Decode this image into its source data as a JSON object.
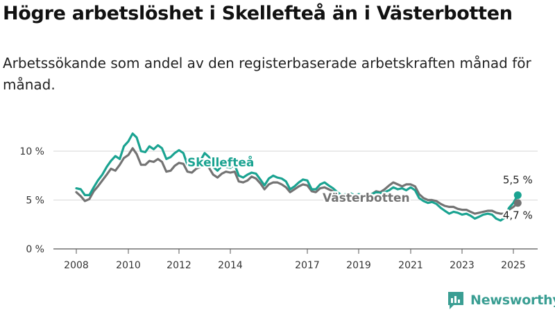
{
  "title": "Högre arbetslöshet i Skellefteå än i Västerbotten",
  "subtitle": "Arbetssökande som andel av den registerbaserade arbetskraften månad för månad.",
  "brand": {
    "name": "Newsworthy",
    "icon": "newsworthy-logo-icon",
    "color": "#3a9e93"
  },
  "chart_data": {
    "type": "line",
    "title": "Högre arbetslöshet i Skellefteå än i Västerbotten",
    "subtitle": "Arbetssökande som andel av den registerbaserade arbetskraften månad för månad.",
    "xlabel": "",
    "ylabel": "",
    "xlim": [
      2007.6,
      2025.6
    ],
    "ylim": [
      0,
      13
    ],
    "grid": true,
    "y_ticks": [
      {
        "value": 0,
        "label": "0 %"
      },
      {
        "value": 5,
        "label": "5 %"
      },
      {
        "value": 10,
        "label": "10 %"
      }
    ],
    "x_ticks": [
      {
        "value": 2008,
        "label": "2008"
      },
      {
        "value": 2010,
        "label": "2010"
      },
      {
        "value": 2012,
        "label": "2012"
      },
      {
        "value": 2014,
        "label": "2014"
      },
      {
        "value": 2017,
        "label": "2017"
      },
      {
        "value": 2019,
        "label": "2019"
      },
      {
        "value": 2021,
        "label": "2021"
      },
      {
        "value": 2023,
        "label": "2023"
      },
      {
        "value": 2025,
        "label": "2025"
      }
    ],
    "series": [
      {
        "name": "Skellefteå",
        "color": "#1aa391",
        "end_value": 5.5,
        "end_label": "5,5 %",
        "points": [
          [
            2008.0,
            6.2
          ],
          [
            2008.17,
            6.1
          ],
          [
            2008.33,
            5.5
          ],
          [
            2008.5,
            5.5
          ],
          [
            2008.67,
            6.3
          ],
          [
            2008.83,
            7.0
          ],
          [
            2009.0,
            7.6
          ],
          [
            2009.17,
            8.4
          ],
          [
            2009.33,
            9.0
          ],
          [
            2009.5,
            9.5
          ],
          [
            2009.67,
            9.2
          ],
          [
            2009.83,
            10.5
          ],
          [
            2010.0,
            11.0
          ],
          [
            2010.17,
            11.8
          ],
          [
            2010.33,
            11.4
          ],
          [
            2010.5,
            10.0
          ],
          [
            2010.67,
            9.9
          ],
          [
            2010.83,
            10.5
          ],
          [
            2011.0,
            10.2
          ],
          [
            2011.17,
            10.6
          ],
          [
            2011.33,
            10.3
          ],
          [
            2011.5,
            9.2
          ],
          [
            2011.67,
            9.4
          ],
          [
            2011.83,
            9.8
          ],
          [
            2012.0,
            10.1
          ],
          [
            2012.17,
            9.8
          ],
          [
            2012.33,
            8.6
          ],
          [
            2012.5,
            8.5
          ],
          [
            2012.67,
            8.8
          ],
          [
            2012.83,
            9.0
          ],
          [
            2013.0,
            9.8
          ],
          [
            2013.17,
            9.4
          ],
          [
            2013.33,
            8.4
          ],
          [
            2013.5,
            8.0
          ],
          [
            2013.67,
            8.5
          ],
          [
            2013.83,
            8.4
          ],
          [
            2014.0,
            8.3
          ],
          [
            2014.17,
            8.6
          ],
          [
            2014.33,
            7.5
          ],
          [
            2014.5,
            7.3
          ],
          [
            2014.67,
            7.6
          ],
          [
            2014.83,
            7.8
          ],
          [
            2015.0,
            7.7
          ],
          [
            2015.17,
            7.1
          ],
          [
            2015.33,
            6.5
          ],
          [
            2015.5,
            7.2
          ],
          [
            2015.67,
            7.5
          ],
          [
            2015.83,
            7.3
          ],
          [
            2016.0,
            7.2
          ],
          [
            2016.17,
            6.9
          ],
          [
            2016.33,
            6.1
          ],
          [
            2016.5,
            6.4
          ],
          [
            2016.67,
            6.8
          ],
          [
            2016.83,
            7.1
          ],
          [
            2017.0,
            7.0
          ],
          [
            2017.17,
            6.1
          ],
          [
            2017.33,
            6.1
          ],
          [
            2017.5,
            6.6
          ],
          [
            2017.67,
            6.8
          ],
          [
            2017.83,
            6.5
          ],
          [
            2018.0,
            6.2
          ],
          [
            2018.17,
            5.8
          ],
          [
            2018.33,
            5.5
          ],
          [
            2018.5,
            5.6
          ],
          [
            2018.67,
            5.7
          ],
          [
            2018.83,
            5.5
          ],
          [
            2019.0,
            5.6
          ],
          [
            2019.17,
            5.5
          ],
          [
            2019.33,
            5.4
          ],
          [
            2019.5,
            5.6
          ],
          [
            2019.67,
            5.8
          ],
          [
            2019.83,
            5.7
          ],
          [
            2020.0,
            5.8
          ],
          [
            2020.17,
            6.0
          ],
          [
            2020.33,
            6.3
          ],
          [
            2020.5,
            6.1
          ],
          [
            2020.67,
            6.2
          ],
          [
            2020.83,
            6.0
          ],
          [
            2021.0,
            6.3
          ],
          [
            2021.17,
            6.0
          ],
          [
            2021.33,
            5.2
          ],
          [
            2021.5,
            4.9
          ],
          [
            2021.67,
            4.7
          ],
          [
            2021.83,
            4.8
          ],
          [
            2022.0,
            4.6
          ],
          [
            2022.17,
            4.2
          ],
          [
            2022.33,
            3.9
          ],
          [
            2022.5,
            3.6
          ],
          [
            2022.67,
            3.8
          ],
          [
            2022.83,
            3.7
          ],
          [
            2023.0,
            3.5
          ],
          [
            2023.17,
            3.6
          ],
          [
            2023.33,
            3.4
          ],
          [
            2023.5,
            3.1
          ],
          [
            2023.67,
            3.3
          ],
          [
            2023.83,
            3.5
          ],
          [
            2024.0,
            3.6
          ],
          [
            2024.17,
            3.5
          ],
          [
            2024.33,
            3.1
          ],
          [
            2024.5,
            2.9
          ],
          [
            2024.67,
            3.2
          ],
          [
            2024.83,
            4.2
          ],
          [
            2025.0,
            4.7
          ],
          [
            2025.17,
            5.5
          ]
        ]
      },
      {
        "name": "Västerbotten",
        "color": "#737373",
        "end_value": 4.7,
        "end_label": "4,7 %",
        "points": [
          [
            2008.0,
            5.8
          ],
          [
            2008.17,
            5.4
          ],
          [
            2008.33,
            4.9
          ],
          [
            2008.5,
            5.1
          ],
          [
            2008.67,
            5.9
          ],
          [
            2008.83,
            6.4
          ],
          [
            2009.0,
            7.0
          ],
          [
            2009.17,
            7.6
          ],
          [
            2009.33,
            8.2
          ],
          [
            2009.5,
            8.0
          ],
          [
            2009.67,
            8.6
          ],
          [
            2009.83,
            9.3
          ],
          [
            2010.0,
            9.6
          ],
          [
            2010.17,
            10.3
          ],
          [
            2010.33,
            9.7
          ],
          [
            2010.5,
            8.6
          ],
          [
            2010.67,
            8.6
          ],
          [
            2010.83,
            9.0
          ],
          [
            2011.0,
            8.9
          ],
          [
            2011.17,
            9.2
          ],
          [
            2011.33,
            8.9
          ],
          [
            2011.5,
            7.9
          ],
          [
            2011.67,
            8.0
          ],
          [
            2011.83,
            8.5
          ],
          [
            2012.0,
            8.8
          ],
          [
            2012.17,
            8.7
          ],
          [
            2012.33,
            7.9
          ],
          [
            2012.5,
            7.8
          ],
          [
            2012.67,
            8.2
          ],
          [
            2012.83,
            8.4
          ],
          [
            2013.0,
            8.6
          ],
          [
            2013.17,
            8.3
          ],
          [
            2013.33,
            7.6
          ],
          [
            2013.5,
            7.3
          ],
          [
            2013.67,
            7.7
          ],
          [
            2013.83,
            7.9
          ],
          [
            2014.0,
            7.8
          ],
          [
            2014.17,
            7.9
          ],
          [
            2014.33,
            6.9
          ],
          [
            2014.5,
            6.8
          ],
          [
            2014.67,
            7.0
          ],
          [
            2014.83,
            7.4
          ],
          [
            2015.0,
            7.2
          ],
          [
            2015.17,
            6.7
          ],
          [
            2015.33,
            6.1
          ],
          [
            2015.5,
            6.6
          ],
          [
            2015.67,
            6.8
          ],
          [
            2015.83,
            6.8
          ],
          [
            2016.0,
            6.6
          ],
          [
            2016.17,
            6.3
          ],
          [
            2016.33,
            5.8
          ],
          [
            2016.5,
            6.1
          ],
          [
            2016.67,
            6.4
          ],
          [
            2016.83,
            6.6
          ],
          [
            2017.0,
            6.5
          ],
          [
            2017.17,
            5.9
          ],
          [
            2017.33,
            5.8
          ],
          [
            2017.5,
            6.2
          ],
          [
            2017.67,
            6.3
          ],
          [
            2017.83,
            6.1
          ],
          [
            2018.0,
            5.9
          ],
          [
            2018.17,
            5.5
          ],
          [
            2018.33,
            5.3
          ],
          [
            2018.5,
            5.4
          ],
          [
            2018.67,
            5.5
          ],
          [
            2018.83,
            5.3
          ],
          [
            2019.0,
            5.4
          ],
          [
            2019.17,
            5.5
          ],
          [
            2019.33,
            5.4
          ],
          [
            2019.5,
            5.6
          ],
          [
            2019.67,
            5.9
          ],
          [
            2019.83,
            5.8
          ],
          [
            2020.0,
            6.1
          ],
          [
            2020.17,
            6.5
          ],
          [
            2020.33,
            6.8
          ],
          [
            2020.5,
            6.6
          ],
          [
            2020.67,
            6.4
          ],
          [
            2020.83,
            6.6
          ],
          [
            2021.0,
            6.6
          ],
          [
            2021.17,
            6.4
          ],
          [
            2021.33,
            5.6
          ],
          [
            2021.5,
            5.2
          ],
          [
            2021.67,
            5.0
          ],
          [
            2021.83,
            5.0
          ],
          [
            2022.0,
            4.9
          ],
          [
            2022.17,
            4.6
          ],
          [
            2022.33,
            4.4
          ],
          [
            2022.5,
            4.3
          ],
          [
            2022.67,
            4.3
          ],
          [
            2022.83,
            4.1
          ],
          [
            2023.0,
            4.0
          ],
          [
            2023.17,
            4.0
          ],
          [
            2023.33,
            3.8
          ],
          [
            2023.5,
            3.6
          ],
          [
            2023.67,
            3.7
          ],
          [
            2023.83,
            3.8
          ],
          [
            2024.0,
            3.9
          ],
          [
            2024.17,
            3.9
          ],
          [
            2024.33,
            3.7
          ],
          [
            2024.5,
            3.6
          ],
          [
            2024.67,
            3.6
          ],
          [
            2024.83,
            4.0
          ],
          [
            2025.0,
            4.3
          ],
          [
            2025.17,
            4.7
          ]
        ]
      }
    ]
  }
}
